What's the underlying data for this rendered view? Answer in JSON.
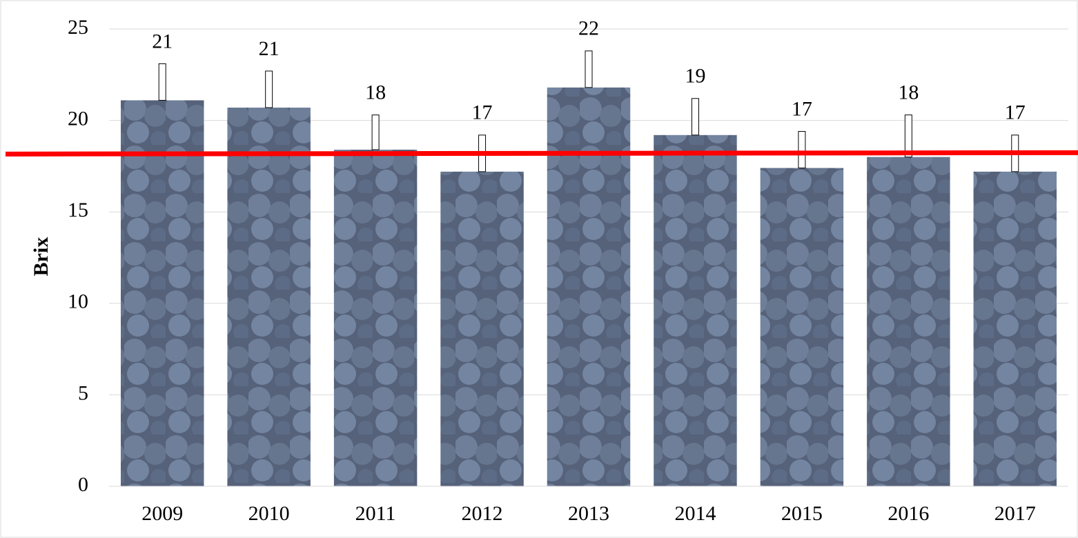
{
  "chart_data": {
    "type": "bar",
    "y_label": "Brix",
    "categories": [
      "2009",
      "2010",
      "2011",
      "2012",
      "2013",
      "2014",
      "2015",
      "2016",
      "2017"
    ],
    "values": [
      21.1,
      20.7,
      18.4,
      17.2,
      21.8,
      19.2,
      17.4,
      18.0,
      17.2
    ],
    "value_labels": [
      "21",
      "21",
      "18",
      "17",
      "22",
      "19",
      "17",
      "18",
      "17"
    ],
    "errors": [
      2.0,
      2.0,
      1.9,
      2.0,
      2.0,
      2.0,
      2.0,
      2.3,
      2.0
    ],
    "ylim": [
      0,
      25
    ],
    "yticks": [
      0,
      5,
      10,
      15,
      20,
      25
    ],
    "grid": true,
    "reference_line": {
      "value": 18.2,
      "color": "#ff0000"
    }
  }
}
